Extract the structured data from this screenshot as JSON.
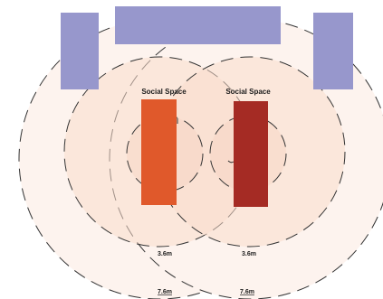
{
  "colors": {
    "background": "#ffffff",
    "table_blue": "#9797cc",
    "outer_zone_fill": "#fdf3ee",
    "social_zone_fill": "#f9dccc",
    "ring_stroke": "#333333",
    "person_left": "#e0592b",
    "person_right": "#a52b24"
  },
  "tables": [
    {
      "name": "top-table"
    },
    {
      "name": "left-table"
    },
    {
      "name": "right-table"
    }
  ],
  "people": [
    {
      "name": "left",
      "social_label": "Social Space",
      "inner_distance_label": "3.6m",
      "outer_distance_label": "7.6m"
    },
    {
      "name": "right",
      "social_label": "Social Space",
      "inner_distance_label": "3.6m",
      "outer_distance_label": "7.6m"
    }
  ]
}
